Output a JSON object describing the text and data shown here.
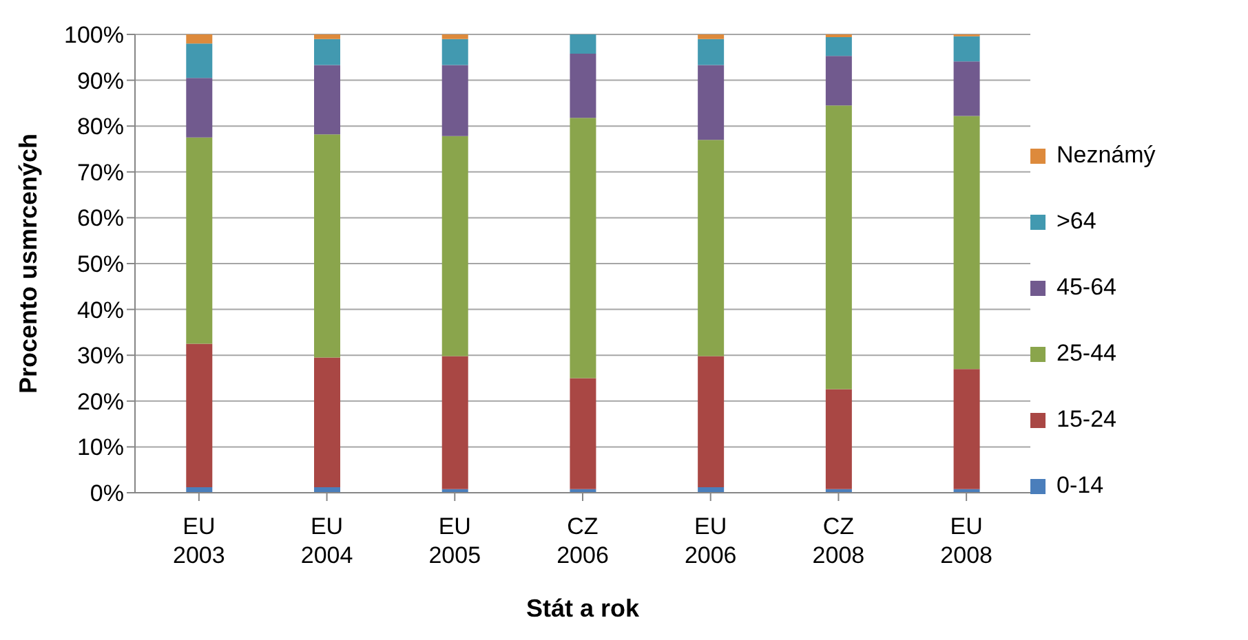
{
  "chart_data": {
    "type": "bar",
    "stacked": true,
    "xlabel": "Stát a rok",
    "ylabel": "Procento usmrcených",
    "categories": [
      "EU 2003",
      "EU 2004",
      "EU 2005",
      "CZ 2006",
      "EU 2006",
      "CZ 2008",
      "EU 2008"
    ],
    "series": [
      {
        "name": "0-14",
        "color": "#4a7ebb",
        "values": [
          1.2,
          1.2,
          0.8,
          0.8,
          1.2,
          0.8,
          0.8
        ]
      },
      {
        "name": "15-24",
        "color": "#a94744",
        "values": [
          31.3,
          28.3,
          29,
          24.2,
          28.6,
          21.8,
          26.2
        ]
      },
      {
        "name": "25-44",
        "color": "#8aa54c",
        "values": [
          45,
          48.7,
          48,
          56.8,
          47.2,
          61.9,
          55.2
        ]
      },
      {
        "name": "45-64",
        "color": "#715a8e",
        "values": [
          13,
          15.1,
          15.5,
          14,
          16.3,
          10.8,
          11.9
        ]
      },
      {
        "name": ">64",
        "color": "#4299b0",
        "values": [
          7.5,
          5.7,
          5.7,
          4.2,
          5.7,
          4.1,
          5.5
        ]
      },
      {
        "name": "Neznámý",
        "color": "#dd8a3c",
        "values": [
          2,
          1,
          1,
          0,
          1,
          0.6,
          0.4
        ]
      }
    ],
    "ylim": [
      0,
      100
    ],
    "yticks": [
      {
        "value": 0,
        "label": "0%"
      },
      {
        "value": 10,
        "label": "10%"
      },
      {
        "value": 20,
        "label": "20%"
      },
      {
        "value": 30,
        "label": "30%"
      },
      {
        "value": 40,
        "label": "40%"
      },
      {
        "value": 50,
        "label": "50%"
      },
      {
        "value": 60,
        "label": "60%"
      },
      {
        "value": 70,
        "label": "70%"
      },
      {
        "value": 80,
        "label": "80%"
      },
      {
        "value": 90,
        "label": "90%"
      },
      {
        "value": 100,
        "label": "100%"
      }
    ],
    "grid": "y",
    "legend": "right"
  }
}
